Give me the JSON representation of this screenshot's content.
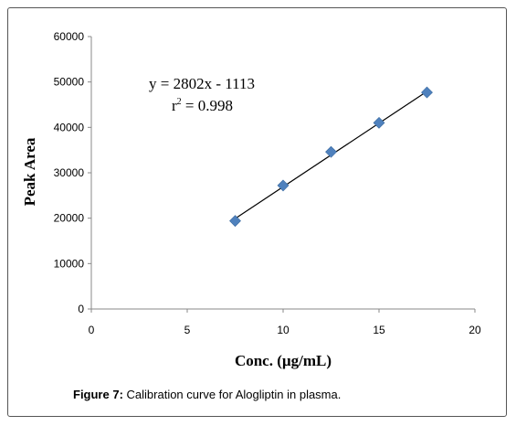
{
  "chart_data": {
    "type": "scatter",
    "xlabel": "Conc. (µg/mL)",
    "ylabel": "Peak Area",
    "xlim": [
      0,
      20
    ],
    "ylim": [
      0,
      60000
    ],
    "x_ticks": [
      "0",
      "5",
      "10",
      "15",
      "20"
    ],
    "y_ticks": [
      "0",
      "10000",
      "20000",
      "30000",
      "40000",
      "50000",
      "60000"
    ],
    "series": [
      {
        "x": [
          7.5,
          10,
          12.5,
          15,
          17.5
        ],
        "y": [
          19400,
          27200,
          34600,
          41000,
          47700
        ],
        "marker_color": "#4f81bd"
      }
    ],
    "trendline": {
      "slope": 2802,
      "intercept": -1113,
      "x_range": [
        7.5,
        17.5
      ],
      "color": "#000000"
    },
    "equation_line1": "y = 2802x - 1113",
    "equation_line2_prefix": "r",
    "equation_line2_sup": "2",
    "equation_line2_suffix": " = 0.998",
    "grid": false,
    "legend": "none"
  },
  "caption": {
    "label": "Figure 7:",
    "text": " Calibration curve for Alogliptin in plasma."
  }
}
